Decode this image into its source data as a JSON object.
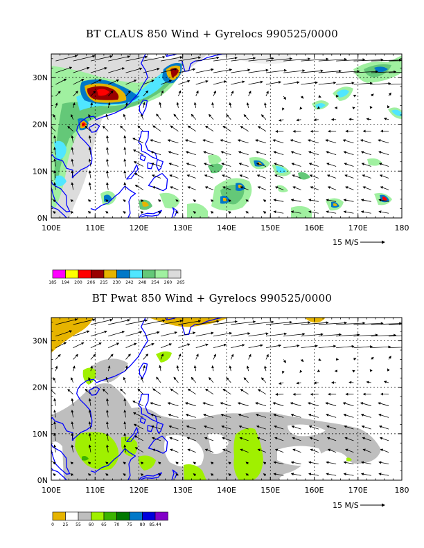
{
  "panels": [
    {
      "title": "BT CLAUS 850 Wind + Gyrelocs 990525/0000",
      "field": "cloud-top brightness temperature",
      "colorbar": {
        "colors": [
          "#ff00ff",
          "#ffff00",
          "#ff0000",
          "#990000",
          "#e6b400",
          "#0078c8",
          "#50e6ff",
          "#64c878",
          "#a0f0a0",
          "#dcdcdc"
        ],
        "labels": [
          "185",
          "194",
          "200",
          "206",
          "215",
          "230",
          "242",
          "248",
          "254",
          "260",
          "265"
        ]
      }
    },
    {
      "title": "BT Pwat 850 Wind + Gyrelocs 990525/0000",
      "field": "precipitable water",
      "colorbar": {
        "colors": [
          "#e6b400",
          "#ffffff",
          "#bebebe",
          "#a0f000",
          "#3cb400",
          "#007800",
          "#0078c8",
          "#0000dc",
          "#8200c8"
        ],
        "labels": [
          "0",
          "25",
          "55",
          "60",
          "65",
          "70",
          "75",
          "80",
          "85.44"
        ]
      }
    }
  ],
  "axes": {
    "x_ticks": [
      "100E",
      "110E",
      "120E",
      "130E",
      "140E",
      "150E",
      "160E",
      "170E",
      "180"
    ],
    "y_ticks": [
      "0N",
      "10N",
      "20N",
      "30N"
    ],
    "xlim": [
      100,
      180
    ],
    "ylim": [
      0,
      35
    ]
  },
  "wind_scale_label": "15 M/S",
  "colors": {
    "coast": "#0000ff",
    "grid": "#000000",
    "arrow": "#000000"
  }
}
